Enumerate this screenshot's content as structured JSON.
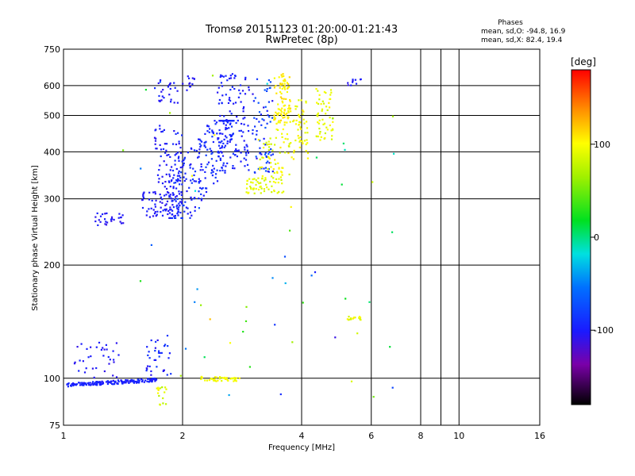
{
  "chart_data": {
    "type": "scatter",
    "title": "Tromsø 20151123 01:20:00-01:21:43",
    "subtitle": "RwPretec (8p)",
    "xlabel": "Frequency [MHz]",
    "ylabel": "Stationary phase Virtual Height [km]",
    "x_scale": "log",
    "y_scale": "log",
    "xlim": [
      1,
      16
    ],
    "ylim": [
      75,
      750
    ],
    "x_ticks": [
      {
        "value": 1,
        "label": "1"
      },
      {
        "value": 2,
        "label": "2"
      },
      {
        "value": 4,
        "label": "4"
      },
      {
        "value": 6,
        "label": "6"
      },
      {
        "value": 8,
        "label": "8"
      },
      {
        "value": 10,
        "label": "10"
      },
      {
        "value": 16,
        "label": "16"
      }
    ],
    "x_minor": [
      9
    ],
    "y_ticks": [
      {
        "value": 75,
        "label": "75"
      },
      {
        "value": 100,
        "label": "100"
      },
      {
        "value": 200,
        "label": "200"
      },
      {
        "value": 300,
        "label": "300"
      },
      {
        "value": 400,
        "label": "400"
      },
      {
        "value": 500,
        "label": "500"
      },
      {
        "value": 600,
        "label": "600"
      },
      {
        "value": 750,
        "label": "750"
      }
    ],
    "grid": true,
    "stats": {
      "heading": "Phases",
      "line_o": "mean, sd,O: -94.8, 16.9",
      "line_x": "mean, sd,X:  82.4, 19.4"
    },
    "colorbar": {
      "label": "[deg]",
      "range": [
        -180,
        180
      ],
      "ticks": [
        {
          "value": 100,
          "label": "100"
        },
        {
          "value": 0,
          "label": "0"
        },
        {
          "value": -100,
          "label": "-100"
        }
      ]
    },
    "clusters": [
      {
        "x": [
          1.02,
          1.72
        ],
        "y": [
          96,
          99
        ],
        "phase": [
          -105,
          -90
        ],
        "n": 170,
        "shape": "band",
        "k": 22
      },
      {
        "x": [
          1.05,
          1.42
        ],
        "y": [
          100,
          125
        ],
        "phase": [
          -110,
          -95
        ],
        "n": 35,
        "shape": "box"
      },
      {
        "x": [
          1.62,
          1.88
        ],
        "y": [
          102,
          130
        ],
        "phase": [
          -110,
          -80
        ],
        "n": 35,
        "shape": "box"
      },
      {
        "x": [
          1.72,
          1.82
        ],
        "y": [
          85,
          95
        ],
        "phase": [
          70,
          110
        ],
        "n": 18,
        "shape": "box"
      },
      {
        "x": [
          2.2,
          2.8
        ],
        "y": [
          98,
          101
        ],
        "phase": [
          90,
          105
        ],
        "n": 45,
        "shape": "box"
      },
      {
        "x": [
          1.2,
          1.42
        ],
        "y": [
          255,
          275
        ],
        "phase": [
          -110,
          -95
        ],
        "n": 28,
        "shape": "box"
      },
      {
        "x": [
          1.58,
          2.0
        ],
        "y": [
          268,
          315
        ],
        "phase": [
          -110,
          -95
        ],
        "n": 70,
        "shape": "box"
      },
      {
        "x": [
          1.85,
          2.7
        ],
        "y": [
          275,
          470
        ],
        "phase": [
          -105,
          -80
        ],
        "n": 230,
        "shape": "band",
        "k": 420
      },
      {
        "x": [
          1.7,
          2.0
        ],
        "y": [
          300,
          470
        ],
        "phase": [
          -110,
          -90
        ],
        "n": 80,
        "shape": "box"
      },
      {
        "x": [
          1.7,
          1.95
        ],
        "y": [
          540,
          625
        ],
        "phase": [
          -110,
          -90
        ],
        "n": 25,
        "shape": "box"
      },
      {
        "x": [
          2.0,
          2.15
        ],
        "y": [
          575,
          640
        ],
        "phase": [
          -110,
          -95
        ],
        "n": 12,
        "shape": "box"
      },
      {
        "x": [
          2.45,
          2.95
        ],
        "y": [
          350,
          650
        ],
        "phase": [
          -105,
          -90
        ],
        "n": 120,
        "shape": "box"
      },
      {
        "x": [
          3.0,
          3.4
        ],
        "y": [
          350,
          640
        ],
        "phase": [
          -110,
          -60
        ],
        "n": 70,
        "shape": "box"
      },
      {
        "x": [
          2.9,
          3.6
        ],
        "y": [
          310,
          345
        ],
        "phase": [
          80,
          100
        ],
        "n": 60,
        "shape": "box"
      },
      {
        "x": [
          3.1,
          3.8
        ],
        "y": [
          345,
          460
        ],
        "phase": [
          80,
          110
        ],
        "n": 60,
        "shape": "box"
      },
      {
        "x": [
          3.4,
          3.75
        ],
        "y": [
          470,
          650
        ],
        "phase": [
          95,
          115
        ],
        "n": 90,
        "shape": "box"
      },
      {
        "x": [
          3.8,
          4.15
        ],
        "y": [
          380,
          560
        ],
        "phase": [
          85,
          110
        ],
        "n": 50,
        "shape": "box"
      },
      {
        "x": [
          4.35,
          4.8
        ],
        "y": [
          430,
          590
        ],
        "phase": [
          80,
          105
        ],
        "n": 55,
        "shape": "box"
      },
      {
        "x": [
          5.2,
          5.65
        ],
        "y": [
          600,
          625
        ],
        "phase": [
          -110,
          -95
        ],
        "n": 10,
        "shape": "box"
      },
      {
        "x": [
          5.2,
          5.65
        ],
        "y": [
          143,
          146
        ],
        "phase": [
          80,
          105
        ],
        "n": 16,
        "shape": "box"
      },
      {
        "x": [
          1.4,
          6.9
        ],
        "y": [
          80,
          650
        ],
        "phase": [
          -120,
          150
        ],
        "n": 55,
        "shape": "box"
      }
    ]
  }
}
